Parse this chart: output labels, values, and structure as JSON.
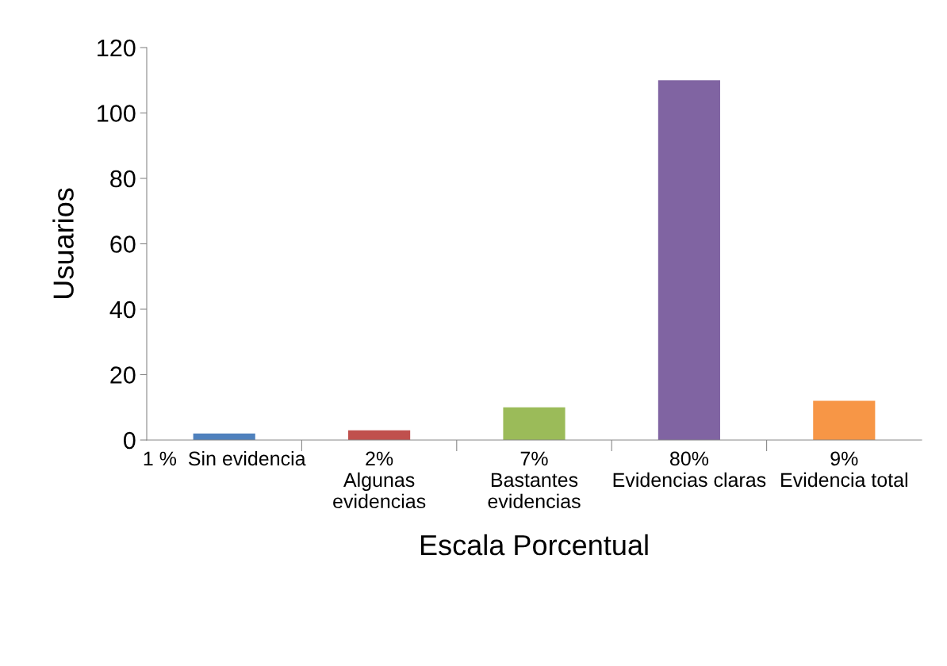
{
  "chart_data": {
    "type": "bar",
    "xlabel": "Escala Porcentual",
    "ylabel": "Usuarios",
    "categories": [
      "1 %  Sin evidencia",
      "2%\nAlgunas\nevidencias",
      "7%\nBastantes\nevidencias",
      "80%\nEvidencias claras",
      "9%\nEvidencia total"
    ],
    "values": [
      2,
      3,
      10,
      110,
      12
    ],
    "colors": [
      "#4f81bd",
      "#c0504d",
      "#9bbb59",
      "#8064a2",
      "#f79646"
    ],
    "ylim": [
      0,
      120
    ],
    "yticks": [
      0,
      20,
      40,
      60,
      80,
      100,
      120
    ],
    "grid": false,
    "legend": false
  }
}
